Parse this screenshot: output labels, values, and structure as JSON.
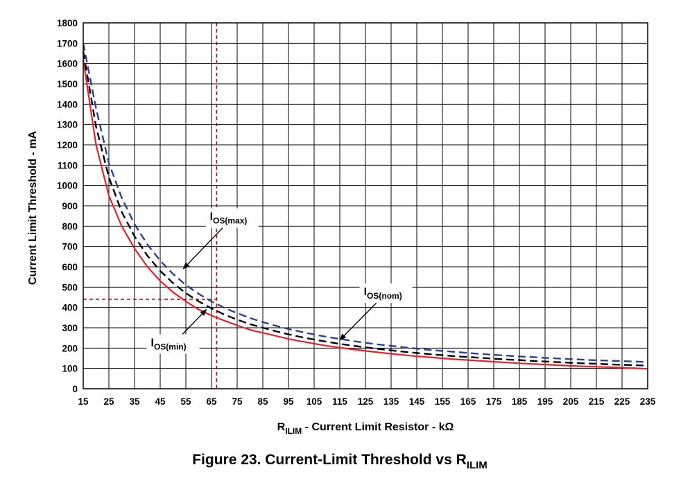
{
  "chart_data": {
    "type": "line",
    "caption": {
      "prefix": "Figure 23.  Current-Limit Threshold vs R",
      "subscript": "ILIM"
    },
    "xlabel": {
      "main": "R",
      "subscript": "ILIM",
      "rest": " - Current Limit Resistor - kΩ"
    },
    "ylabel": "Current Limit Threshold - mA",
    "xlim": [
      15,
      235
    ],
    "ylim": [
      0,
      1800
    ],
    "x_ticks": [
      15,
      25,
      35,
      45,
      55,
      65,
      75,
      85,
      95,
      105,
      115,
      125,
      135,
      145,
      155,
      165,
      175,
      185,
      195,
      205,
      215,
      225,
      235
    ],
    "y_ticks": [
      0,
      100,
      200,
      300,
      400,
      500,
      600,
      700,
      800,
      900,
      1000,
      1100,
      1200,
      1300,
      1400,
      1500,
      1600,
      1700,
      1800
    ],
    "x_tick_labels": [
      "15",
      "25",
      "35",
      "45",
      "55",
      "65",
      "75",
      "85",
      "95",
      "105",
      "115",
      "125",
      "135",
      "145",
      "155",
      "165",
      "175",
      "185",
      "195",
      "205",
      "215",
      "225",
      "235"
    ],
    "y_tick_labels": [
      "0",
      "100",
      "200",
      "300",
      "400",
      "500",
      "600",
      "700",
      "800",
      "900",
      "1000",
      "1100",
      "1200",
      "1300",
      "1400",
      "1500",
      "1600",
      "1700",
      "1800"
    ],
    "grid": true,
    "series": [
      {
        "id": "min",
        "label_main": "I",
        "label_sub": "OS(min)",
        "color": "#e8202a",
        "style": "solid",
        "x": [
          15,
          20,
          25,
          30,
          35,
          40,
          45,
          50,
          55,
          60,
          65,
          70,
          75,
          80,
          85,
          90,
          95,
          100,
          105,
          110,
          115,
          120,
          125,
          130,
          135,
          140,
          145,
          150,
          155,
          160,
          165,
          170,
          175,
          180,
          185,
          190,
          195,
          200,
          205,
          210,
          215,
          220,
          225,
          230,
          235
        ],
        "y": [
          1620,
          1200,
          950,
          800,
          690,
          600,
          530,
          475,
          430,
          390,
          360,
          335,
          312,
          290,
          275,
          260,
          245,
          233,
          222,
          211,
          202,
          194,
          186,
          179,
          172,
          166,
          160,
          155,
          150,
          145,
          141,
          137,
          133,
          129,
          125,
          122,
          119,
          116,
          113,
          110,
          108,
          106,
          104,
          101,
          98
        ]
      },
      {
        "id": "nom",
        "label_main": "I",
        "label_sub": "OS(nom)",
        "color": "#000000",
        "style": "dashed",
        "x": [
          15,
          20,
          25,
          30,
          35,
          40,
          45,
          50,
          55,
          60,
          65,
          70,
          75,
          80,
          85,
          90,
          95,
          100,
          105,
          110,
          115,
          120,
          125,
          130,
          135,
          140,
          145,
          150,
          155,
          160,
          165,
          170,
          175,
          180,
          185,
          190,
          195,
          200,
          205,
          210,
          215,
          220,
          225,
          230,
          235
        ],
        "y": [
          1660,
          1290,
          1040,
          870,
          750,
          655,
          580,
          520,
          470,
          430,
          395,
          365,
          340,
          318,
          300,
          283,
          268,
          254,
          242,
          231,
          221,
          212,
          204,
          196,
          189,
          182,
          176,
          170,
          165,
          160,
          156,
          152,
          148,
          144,
          141,
          137,
          134,
          131,
          128,
          125,
          123,
          120,
          118,
          116,
          114
        ]
      },
      {
        "id": "max",
        "label_main": "I",
        "label_sub": "OS(max)",
        "color": "#2a3f98",
        "style": "dashed",
        "x": [
          15,
          20,
          25,
          30,
          35,
          40,
          45,
          50,
          55,
          60,
          65,
          70,
          75,
          80,
          85,
          90,
          95,
          100,
          105,
          110,
          115,
          120,
          125,
          130,
          135,
          140,
          145,
          150,
          155,
          160,
          165,
          170,
          175,
          180,
          185,
          190,
          195,
          200,
          205,
          210,
          215,
          220,
          225,
          230,
          235
        ],
        "y": [
          1700,
          1380,
          1110,
          940,
          810,
          710,
          630,
          565,
          510,
          467,
          430,
          398,
          372,
          348,
          328,
          310,
          294,
          280,
          267,
          255,
          245,
          235,
          226,
          218,
          211,
          204,
          197,
          191,
          186,
          181,
          176,
          171,
          167,
          163,
          159,
          156,
          152,
          149,
          146,
          143,
          140,
          138,
          136,
          134,
          131
        ]
      }
    ],
    "reference_lines": {
      "vertical_x": 67,
      "horizontal_y": 440,
      "color": "#cc0000"
    },
    "annotations": [
      {
        "series": "max",
        "text_main": "I",
        "text_sub": "OS(max)",
        "label_at": [
          73,
          840
        ],
        "arrow_to": [
          54,
          590
        ]
      },
      {
        "series": "nom",
        "text_main": "I",
        "text_sub": "OS(nom)",
        "label_at": [
          133,
          470
        ],
        "arrow_to": [
          115,
          240
        ]
      },
      {
        "series": "min",
        "text_main": "I",
        "text_sub": "OS(min)",
        "label_at": [
          50,
          220
        ],
        "arrow_to": [
          63,
          390
        ]
      }
    ]
  }
}
